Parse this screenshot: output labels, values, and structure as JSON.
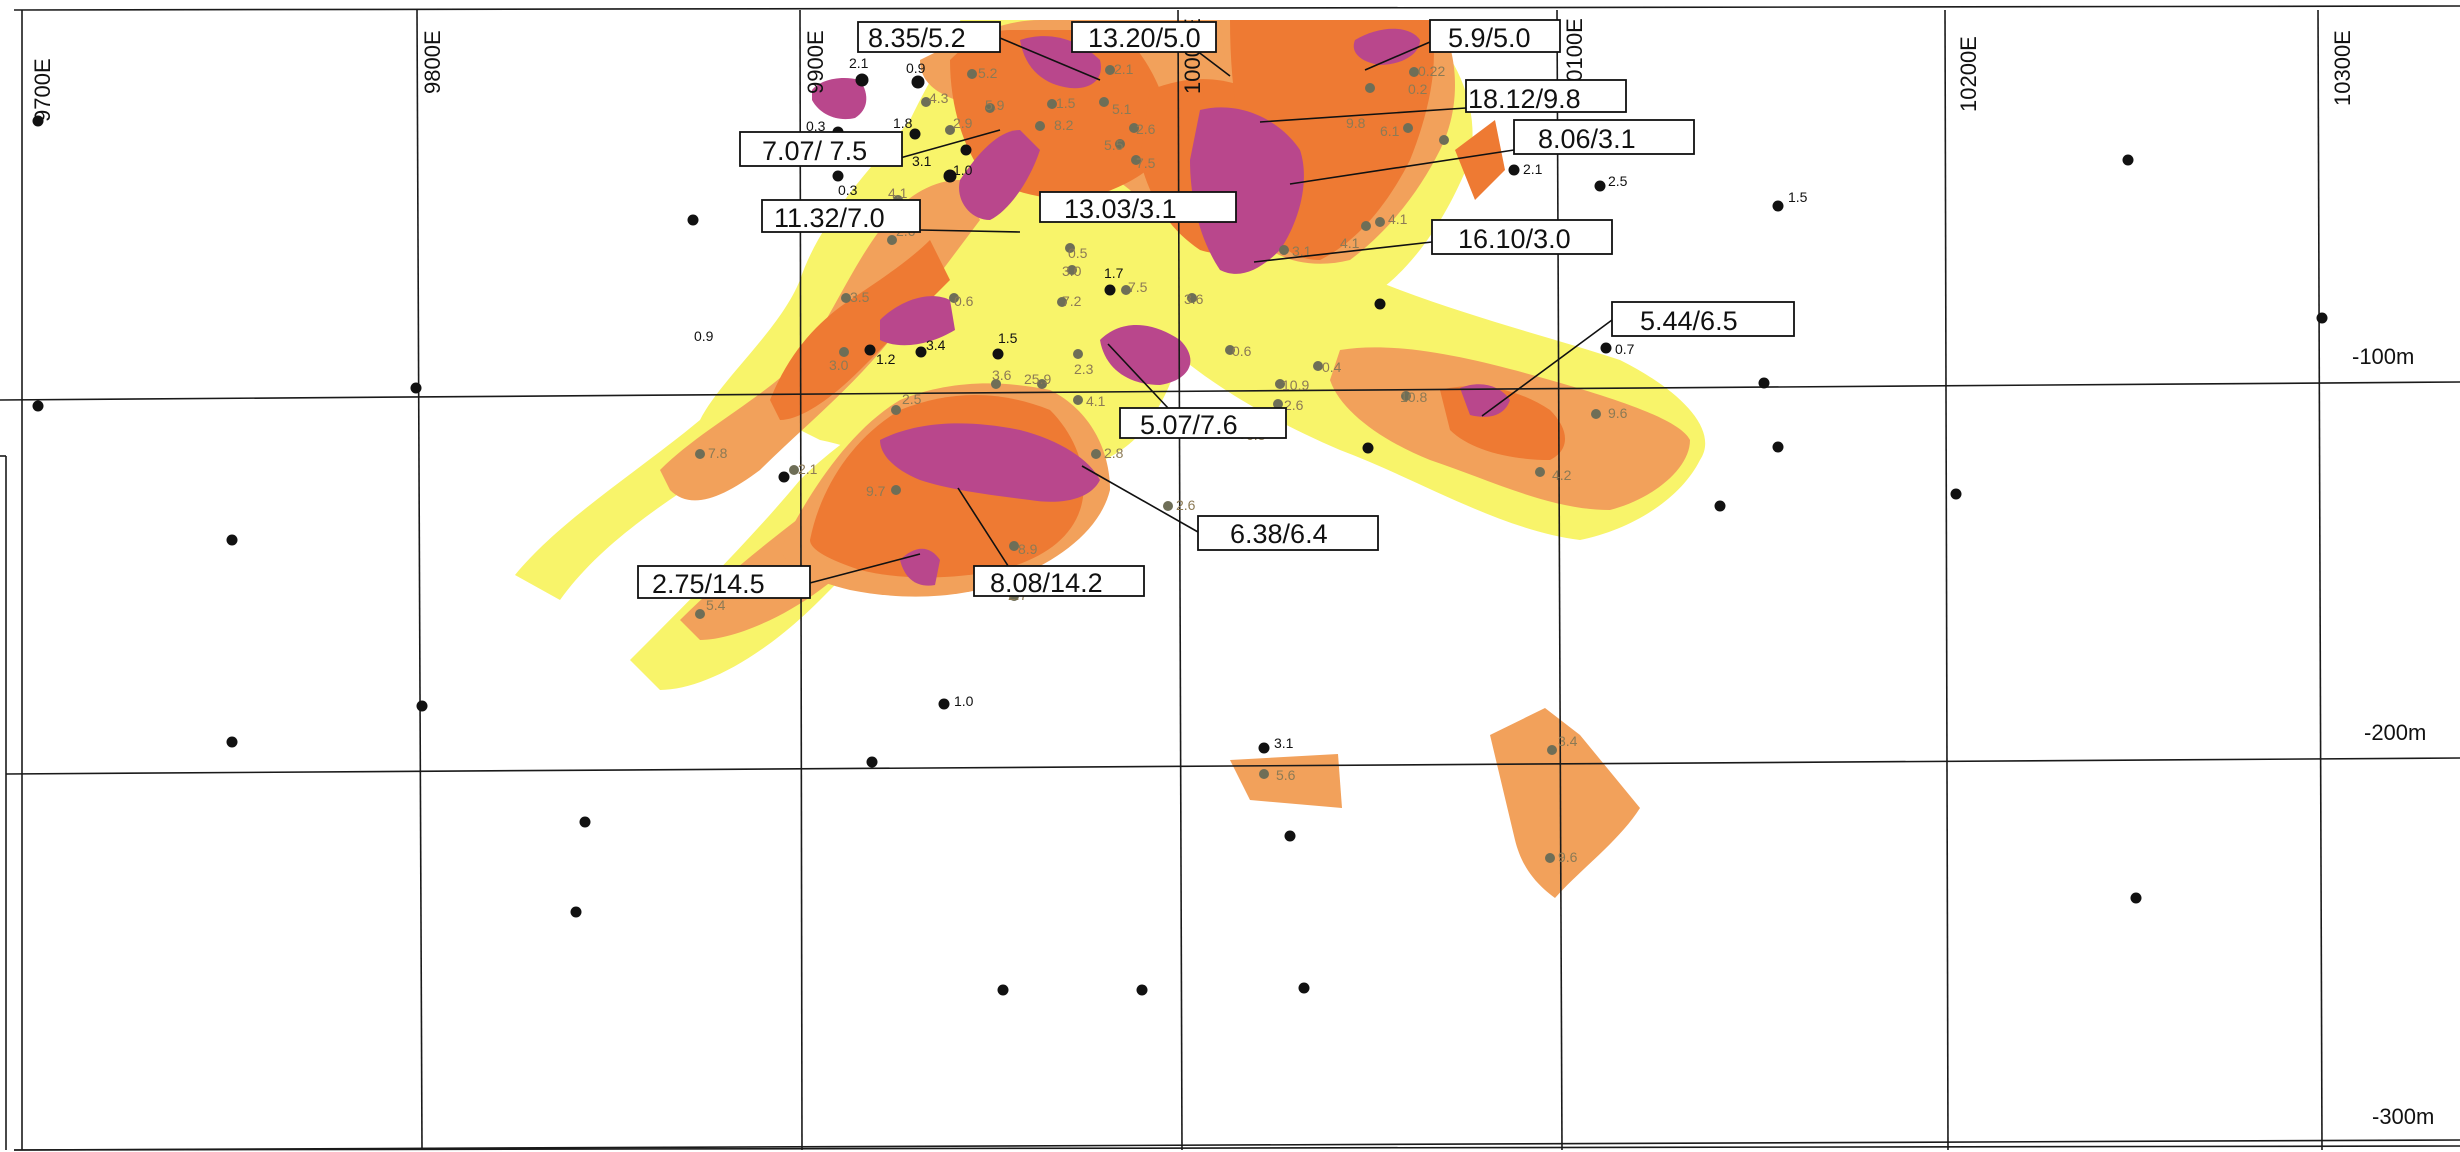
{
  "map": {
    "easting_labels": [
      "9700E",
      "9800E",
      "9900E",
      "10000E",
      "10100E",
      "10200E",
      "10300E"
    ],
    "depth_labels": [
      "-100m",
      "-200m",
      "-300m"
    ],
    "zone_colors": {
      "low": "#f8f46a",
      "medium": "#f2a15b",
      "high": "#ee7a33",
      "very_high": "#b9478c"
    },
    "grade_labels": [
      "8.35/5.2",
      "13.20/5.0",
      "5.9/5.0",
      "18.12/9.8",
      "7.07/ 7.5",
      "8.06/3.1",
      "11.32/7.0",
      "13.03/3.1",
      "16.10/3.0",
      "5.44/6.5",
      "5.07/7.6",
      "6.38/6.4",
      "2.75/14.5",
      "8.08/14.2"
    ],
    "hole_values_black": [
      "2.1",
      "0.9",
      "1.8",
      "0.3",
      "0.3",
      "3.1",
      "1.0",
      "0.9",
      "3.4",
      "1.2",
      "1.5",
      "1.7",
      "2.1",
      "2.5",
      "1.5",
      "0.7",
      "1.0",
      "3.1"
    ],
    "hole_values_grey": [
      "5.2",
      "4.3",
      "2.9",
      "5.9",
      "4.1",
      "1.5",
      "8.2",
      "2.1",
      "5.1",
      "2.6",
      "5.5",
      "7.5",
      "0.22",
      "4.1",
      "2.6",
      "3.5",
      "0.6",
      "7.2",
      "7.5",
      "3.6",
      "3.0",
      "2.5",
      "3.6",
      "25.9",
      "2.3",
      "4.1",
      "2.8",
      "0.6",
      "2.6",
      "10.9",
      "9.6",
      "2.1",
      "9.7",
      "7.8",
      "5.4",
      "8.9",
      "2.7",
      "3.1",
      "0.4",
      "4.1",
      "10.8",
      "9.8",
      "4.2",
      "2.6",
      "6.8",
      "5.6",
      "3.4",
      "9.6",
      "6.1",
      "0.5",
      "0.2",
      "3.0"
    ]
  }
}
